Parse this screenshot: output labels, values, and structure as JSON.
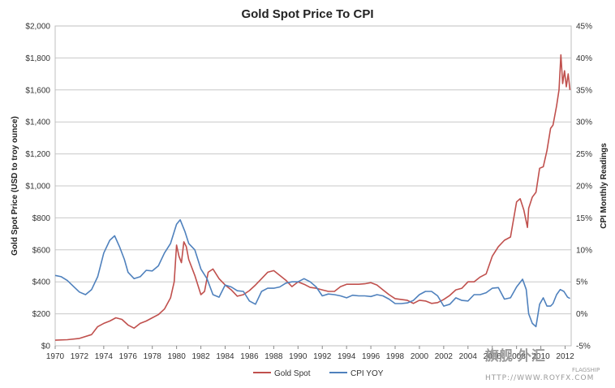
{
  "chart_data": {
    "type": "line",
    "title": "Gold Spot Price To CPI",
    "ylabel": "Gold Spot Price (USD to troy ounce)",
    "y2label": "CPI Monthly Readings",
    "x_ticks": [
      "1970",
      "1972",
      "1974",
      "1976",
      "1978",
      "1980",
      "1982",
      "1984",
      "1986",
      "1988",
      "1990",
      "1992",
      "1994",
      "1996",
      "1998",
      "2000",
      "2002",
      "2004",
      "2006",
      "2008",
      "2010",
      "2012"
    ],
    "xlim": [
      1970,
      2012.5
    ],
    "ylim": [
      0,
      2000
    ],
    "y2lim": [
      -5,
      45
    ],
    "y_ticks": [
      "$0",
      "$200",
      "$400",
      "$600",
      "$800",
      "$1,000",
      "$1,200",
      "$1,400",
      "$1,600",
      "$1,800",
      "$2,000"
    ],
    "y2_ticks": [
      "-5%",
      "0%",
      "5%",
      "10%",
      "15%",
      "20%",
      "25%",
      "30%",
      "35%",
      "40%",
      "45%"
    ],
    "grid": "horizontal",
    "legend_position": "bottom",
    "series": [
      {
        "name": "Gold Spot",
        "color": "#c0504d",
        "axis": "left",
        "points": [
          [
            1970.0,
            35
          ],
          [
            1971.0,
            38
          ],
          [
            1972.0,
            46
          ],
          [
            1973.0,
            70
          ],
          [
            1973.5,
            120
          ],
          [
            1974.0,
            140
          ],
          [
            1974.5,
            155
          ],
          [
            1975.0,
            175
          ],
          [
            1975.5,
            165
          ],
          [
            1976.0,
            130
          ],
          [
            1976.5,
            110
          ],
          [
            1977.0,
            140
          ],
          [
            1977.5,
            155
          ],
          [
            1978.0,
            175
          ],
          [
            1978.5,
            195
          ],
          [
            1979.0,
            230
          ],
          [
            1979.5,
            300
          ],
          [
            1979.8,
            400
          ],
          [
            1980.0,
            630
          ],
          [
            1980.2,
            560
          ],
          [
            1980.4,
            520
          ],
          [
            1980.6,
            650
          ],
          [
            1980.8,
            620
          ],
          [
            1981.0,
            540
          ],
          [
            1981.5,
            440
          ],
          [
            1982.0,
            320
          ],
          [
            1982.3,
            340
          ],
          [
            1982.6,
            460
          ],
          [
            1983.0,
            480
          ],
          [
            1983.5,
            420
          ],
          [
            1984.0,
            380
          ],
          [
            1984.5,
            350
          ],
          [
            1985.0,
            310
          ],
          [
            1985.5,
            320
          ],
          [
            1986.0,
            345
          ],
          [
            1986.5,
            380
          ],
          [
            1987.0,
            420
          ],
          [
            1987.5,
            460
          ],
          [
            1988.0,
            470
          ],
          [
            1988.5,
            440
          ],
          [
            1989.0,
            410
          ],
          [
            1989.5,
            370
          ],
          [
            1990.0,
            400
          ],
          [
            1990.5,
            385
          ],
          [
            1991.0,
            365
          ],
          [
            1991.5,
            360
          ],
          [
            1992.0,
            350
          ],
          [
            1992.5,
            340
          ],
          [
            1993.0,
            340
          ],
          [
            1993.5,
            370
          ],
          [
            1994.0,
            385
          ],
          [
            1994.5,
            385
          ],
          [
            1995.0,
            385
          ],
          [
            1995.5,
            388
          ],
          [
            1996.0,
            395
          ],
          [
            1996.5,
            380
          ],
          [
            1997.0,
            350
          ],
          [
            1997.5,
            320
          ],
          [
            1998.0,
            295
          ],
          [
            1998.5,
            290
          ],
          [
            1999.0,
            285
          ],
          [
            1999.5,
            265
          ],
          [
            2000.0,
            285
          ],
          [
            2000.5,
            280
          ],
          [
            2001.0,
            265
          ],
          [
            2001.5,
            270
          ],
          [
            2002.0,
            290
          ],
          [
            2002.5,
            315
          ],
          [
            2003.0,
            350
          ],
          [
            2003.5,
            360
          ],
          [
            2004.0,
            400
          ],
          [
            2004.5,
            400
          ],
          [
            2005.0,
            430
          ],
          [
            2005.5,
            450
          ],
          [
            2006.0,
            560
          ],
          [
            2006.5,
            620
          ],
          [
            2007.0,
            660
          ],
          [
            2007.5,
            680
          ],
          [
            2008.0,
            900
          ],
          [
            2008.3,
            920
          ],
          [
            2008.6,
            850
          ],
          [
            2008.9,
            740
          ],
          [
            2009.0,
            860
          ],
          [
            2009.3,
            930
          ],
          [
            2009.6,
            960
          ],
          [
            2009.9,
            1110
          ],
          [
            2010.2,
            1120
          ],
          [
            2010.5,
            1220
          ],
          [
            2010.8,
            1360
          ],
          [
            2011.0,
            1380
          ],
          [
            2011.3,
            1500
          ],
          [
            2011.5,
            1600
          ],
          [
            2011.65,
            1820
          ],
          [
            2011.8,
            1640
          ],
          [
            2011.95,
            1720
          ],
          [
            2012.1,
            1620
          ],
          [
            2012.25,
            1700
          ],
          [
            2012.4,
            1600
          ]
        ]
      },
      {
        "name": "CPI YOY",
        "color": "#4f81bd",
        "axis": "right",
        "points": [
          [
            1970.0,
            6.0
          ],
          [
            1970.5,
            5.8
          ],
          [
            1971.0,
            5.2
          ],
          [
            1971.5,
            4.3
          ],
          [
            1972.0,
            3.4
          ],
          [
            1972.5,
            3.0
          ],
          [
            1973.0,
            3.8
          ],
          [
            1973.5,
            5.8
          ],
          [
            1974.0,
            9.5
          ],
          [
            1974.5,
            11.5
          ],
          [
            1974.9,
            12.2
          ],
          [
            1975.3,
            10.5
          ],
          [
            1975.7,
            8.5
          ],
          [
            1976.0,
            6.5
          ],
          [
            1976.5,
            5.5
          ],
          [
            1977.0,
            5.8
          ],
          [
            1977.5,
            6.8
          ],
          [
            1978.0,
            6.7
          ],
          [
            1978.5,
            7.5
          ],
          [
            1979.0,
            9.5
          ],
          [
            1979.5,
            11.0
          ],
          [
            1980.0,
            14.0
          ],
          [
            1980.3,
            14.7
          ],
          [
            1980.7,
            12.8
          ],
          [
            1981.0,
            11.0
          ],
          [
            1981.5,
            10.0
          ],
          [
            1982.0,
            7.0
          ],
          [
            1982.5,
            5.5
          ],
          [
            1983.0,
            3.0
          ],
          [
            1983.5,
            2.6
          ],
          [
            1984.0,
            4.5
          ],
          [
            1984.5,
            4.2
          ],
          [
            1985.0,
            3.6
          ],
          [
            1985.5,
            3.5
          ],
          [
            1986.0,
            2.0
          ],
          [
            1986.5,
            1.5
          ],
          [
            1987.0,
            3.5
          ],
          [
            1987.5,
            4.0
          ],
          [
            1988.0,
            4.0
          ],
          [
            1988.5,
            4.2
          ],
          [
            1989.0,
            4.8
          ],
          [
            1989.5,
            5.0
          ],
          [
            1990.0,
            5.0
          ],
          [
            1990.5,
            5.5
          ],
          [
            1991.0,
            5.0
          ],
          [
            1991.5,
            4.2
          ],
          [
            1992.0,
            2.8
          ],
          [
            1992.5,
            3.1
          ],
          [
            1993.0,
            3.0
          ],
          [
            1993.5,
            2.8
          ],
          [
            1994.0,
            2.5
          ],
          [
            1994.5,
            2.9
          ],
          [
            1995.0,
            2.8
          ],
          [
            1995.5,
            2.8
          ],
          [
            1996.0,
            2.7
          ],
          [
            1996.5,
            3.0
          ],
          [
            1997.0,
            2.8
          ],
          [
            1997.5,
            2.3
          ],
          [
            1998.0,
            1.6
          ],
          [
            1998.5,
            1.6
          ],
          [
            1999.0,
            1.7
          ],
          [
            1999.5,
            2.1
          ],
          [
            2000.0,
            3.0
          ],
          [
            2000.5,
            3.5
          ],
          [
            2001.0,
            3.5
          ],
          [
            2001.5,
            2.8
          ],
          [
            2002.0,
            1.2
          ],
          [
            2002.5,
            1.5
          ],
          [
            2003.0,
            2.5
          ],
          [
            2003.5,
            2.1
          ],
          [
            2004.0,
            2.0
          ],
          [
            2004.5,
            3.0
          ],
          [
            2005.0,
            3.0
          ],
          [
            2005.5,
            3.3
          ],
          [
            2006.0,
            4.0
          ],
          [
            2006.5,
            4.1
          ],
          [
            2007.0,
            2.3
          ],
          [
            2007.5,
            2.5
          ],
          [
            2008.0,
            4.2
          ],
          [
            2008.5,
            5.4
          ],
          [
            2008.8,
            3.8
          ],
          [
            2009.0,
            0.0
          ],
          [
            2009.3,
            -1.5
          ],
          [
            2009.6,
            -2.0
          ],
          [
            2009.9,
            1.5
          ],
          [
            2010.2,
            2.5
          ],
          [
            2010.5,
            1.2
          ],
          [
            2010.8,
            1.2
          ],
          [
            2011.0,
            1.6
          ],
          [
            2011.3,
            3.0
          ],
          [
            2011.6,
            3.8
          ],
          [
            2011.9,
            3.5
          ],
          [
            2012.2,
            2.6
          ],
          [
            2012.4,
            2.4
          ]
        ]
      }
    ]
  },
  "watermark": {
    "main": "旗舰 外汇",
    "sub1": "FLAGSHIP",
    "sub2": "HTTP://WWW.ROYFX.COM"
  }
}
